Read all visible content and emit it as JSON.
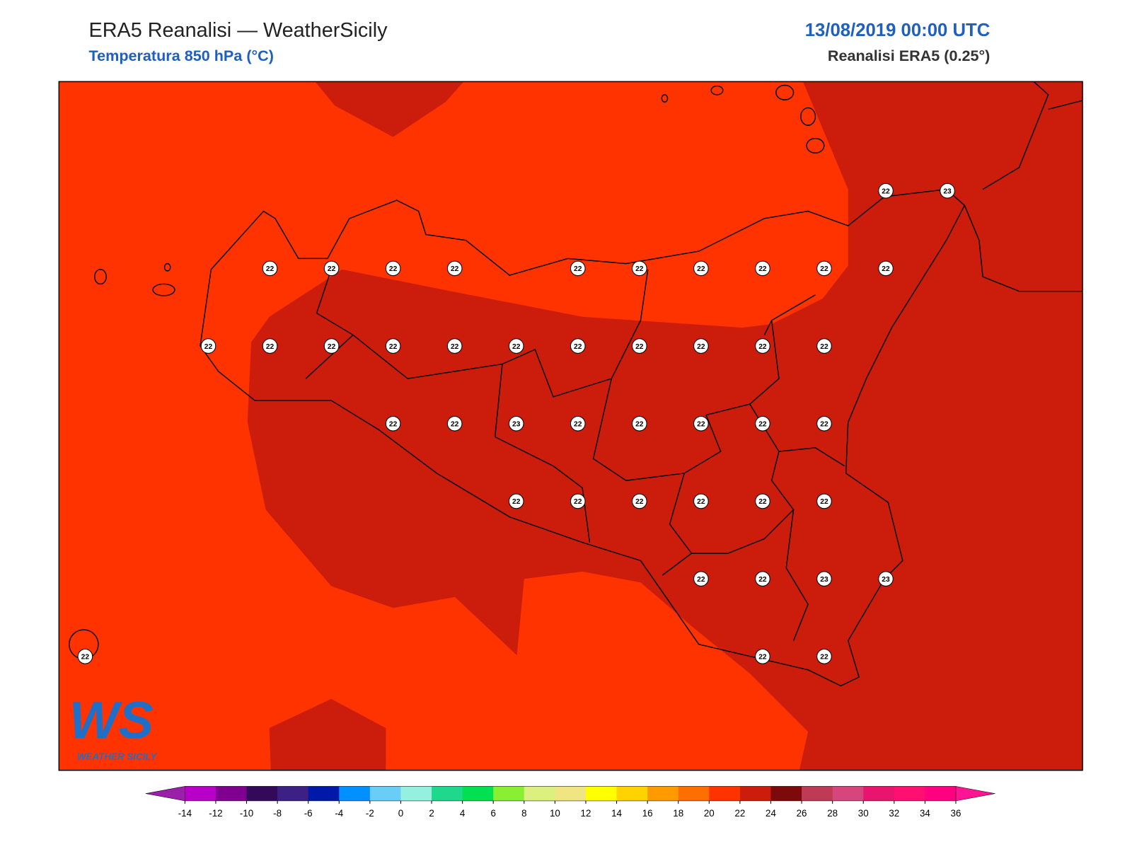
{
  "header": {
    "title": "ERA5 Reanalisi — WeatherSicily",
    "subtitle": "Temperatura 850 hPa (°C)",
    "date": "13/08/2019 00:00 UTC",
    "source": "Reanalisi ERA5 (0.25°)"
  },
  "grid": {
    "rows": [
      [
        null,
        null,
        null,
        null,
        null,
        null,
        null,
        null,
        null,
        null,
        null,
        null,
        null,
        22,
        23
      ],
      [
        null,
        null,
        null,
        22,
        22,
        22,
        22,
        null,
        22,
        22,
        22,
        22,
        22,
        22,
        null
      ],
      [
        null,
        null,
        22,
        22,
        22,
        22,
        22,
        22,
        22,
        22,
        22,
        22,
        22,
        null,
        null
      ],
      [
        null,
        null,
        null,
        null,
        null,
        22,
        22,
        23,
        22,
        22,
        22,
        22,
        22,
        null,
        null
      ],
      [
        null,
        null,
        null,
        null,
        null,
        null,
        null,
        22,
        22,
        22,
        22,
        22,
        22,
        null,
        null
      ],
      [
        null,
        null,
        null,
        null,
        null,
        null,
        null,
        null,
        null,
        null,
        22,
        22,
        23,
        23,
        null
      ],
      [
        22,
        null,
        null,
        null,
        null,
        null,
        null,
        null,
        null,
        null,
        null,
        22,
        22,
        null,
        null
      ]
    ]
  },
  "colorbar": {
    "ticks": [
      -14,
      -12,
      -10,
      -8,
      -6,
      -4,
      -2,
      0,
      2,
      4,
      6,
      8,
      10,
      12,
      14,
      16,
      18,
      20,
      22,
      24,
      26,
      28,
      30,
      32,
      34,
      36
    ],
    "colors": [
      "#b900c9",
      "#7f008f",
      "#330a5a",
      "#3c2084",
      "#0019a8",
      "#0090ff",
      "#6acdf5",
      "#96f0e0",
      "#1ed98c",
      "#00e050",
      "#8aef33",
      "#dcf07f",
      "#efe582",
      "#ffff00",
      "#ffd200",
      "#ff9a00",
      "#ff6e00",
      "#ff3300",
      "#cc1c0c",
      "#7c0a0a",
      "#bf3a54",
      "#d6457c",
      "#e8146e",
      "#ff1070",
      "#ff0080"
    ],
    "under": "#9b1fa8",
    "over": "#ff1493"
  },
  "logo": {
    "mark": "WS",
    "text": "WEATHER SICILY"
  }
}
